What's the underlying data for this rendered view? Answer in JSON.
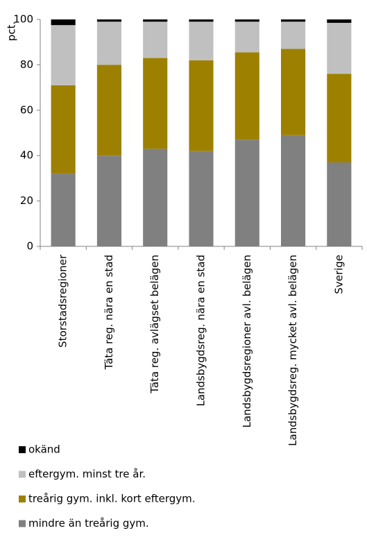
{
  "chart_data": {
    "type": "stacked-bar",
    "y_label": "pct.",
    "categories": [
      "Storstadsregioner",
      "Täta reg. nära en stad",
      "Täta reg. avlägset belägen",
      "Landsbygdsreg. nära en stad",
      "Landsbygdsregioner avl. belägen",
      "Landsbygdsreg. mycket avl. belägen",
      "Sverige"
    ],
    "series": [
      {
        "name": "mindre än treårig gym.",
        "color": "#808080",
        "values": [
          32,
          40,
          43,
          42,
          47,
          49,
          37
        ]
      },
      {
        "name": "treårig gym. inkl. kort eftergym.",
        "color": "#9e8000",
        "values": [
          39,
          40,
          40,
          40,
          38.5,
          38,
          39
        ]
      },
      {
        "name": "eftergym. minst tre år.",
        "color": "#c0c0c0",
        "values": [
          26.5,
          19,
          16,
          17,
          13.5,
          12,
          22.5
        ]
      },
      {
        "name": "okänd",
        "color": "#000000",
        "values": [
          2.5,
          1,
          1,
          1,
          1,
          1,
          1.5
        ]
      }
    ],
    "ylim": [
      0,
      100
    ],
    "yticks": [
      0,
      20,
      40,
      60,
      80,
      100
    ],
    "grid": false,
    "legend": "bottom-left"
  }
}
